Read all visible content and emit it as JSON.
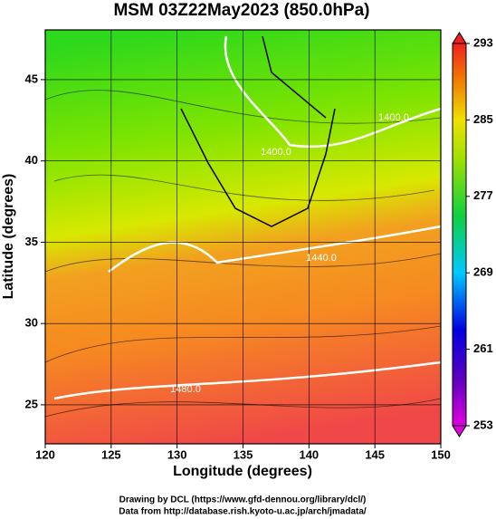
{
  "chart_data": {
    "type": "map",
    "title": "MSM 03Z22May2023 (850.0hPa)",
    "x_label": "Longitude (degrees)",
    "y_label": "Latitude  (degrees)",
    "xlim": [
      120,
      150
    ],
    "xticks": [
      120,
      125,
      130,
      135,
      140,
      145,
      150
    ],
    "ylim": [
      22.6,
      48.06
    ],
    "yticks": [
      25,
      30,
      35,
      40,
      45
    ],
    "grid": true,
    "colorbar": {
      "lim": [
        253,
        293
      ],
      "ticks": [
        253,
        261,
        269,
        277,
        285,
        293
      ]
    },
    "contour_labels": [
      "1400.0",
      "1400.0",
      "1440.0",
      "1480.0"
    ],
    "credits": [
      "Drawing by DCL (https://www.gfd-dennou.org/library/dcl/)",
      "Data from http://database.rish.kyoto-u.ac.jp/arch/jmadata/"
    ]
  }
}
